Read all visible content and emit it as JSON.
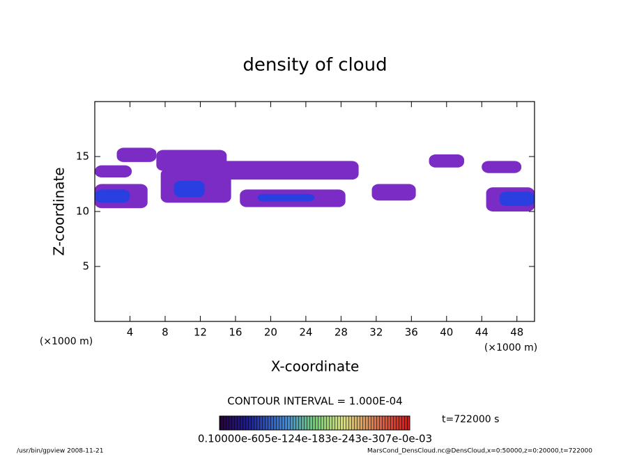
{
  "chart_data": {
    "type": "contour",
    "title": "density of cloud",
    "x_label": "X-coordinate",
    "y_label": "Z-coordinate",
    "x_unit": "(×1000 m)",
    "y_unit": "(×1000 m)",
    "xlim": [
      0,
      50
    ],
    "ylim": [
      0,
      20
    ],
    "xticks": [
      4,
      8,
      12,
      16,
      20,
      24,
      28,
      32,
      36,
      40,
      44,
      48
    ],
    "yticks": [
      5,
      10,
      15
    ],
    "contour_interval": "CONTOUR INTERVAL = 1.000E-04",
    "colorbar_labels": "0.10000e-605e-124e-183e-243e-307e-0e-03",
    "time_label": "t=722000 s",
    "footer_left": "/usr/bin/gpview   2008-11-21",
    "footer_right": "MarsCond_DensCloud.nc@DensCloud,x=0:50000,z=0:20000,t=722000",
    "patches": [
      {
        "x": [
          2.5,
          7
        ],
        "z": [
          14.5,
          15.8
        ],
        "value": 0.0001,
        "color": "#7b2cc4"
      },
      {
        "x": [
          0,
          4.2
        ],
        "z": [
          13.1,
          14.2
        ],
        "value": 0.0001,
        "color": "#7b2cc4"
      },
      {
        "x": [
          0,
          6
        ],
        "z": [
          10.3,
          12.5
        ],
        "value": 0.0001,
        "color": "#7b2cc4"
      },
      {
        "x": [
          0,
          4
        ],
        "z": [
          10.8,
          12
        ],
        "value": 0.0003,
        "color": "#2a3fe0"
      },
      {
        "x": [
          7,
          15
        ],
        "z": [
          13.7,
          15.6
        ],
        "value": 0.0001,
        "color": "#7b2cc4"
      },
      {
        "x": [
          14,
          30
        ],
        "z": [
          12.9,
          14.6
        ],
        "value": 0.0001,
        "color": "#7b2cc4"
      },
      {
        "x": [
          7.5,
          15.5
        ],
        "z": [
          10.8,
          13.9
        ],
        "value": 0.0001,
        "color": "#7b2cc4"
      },
      {
        "x": [
          9,
          12.5
        ],
        "z": [
          11.3,
          12.8
        ],
        "value": 0.0003,
        "color": "#2a3fe0"
      },
      {
        "x": [
          16.5,
          28.5
        ],
        "z": [
          10.4,
          12
        ],
        "value": 0.0001,
        "color": "#7b2cc4"
      },
      {
        "x": [
          18.5,
          25
        ],
        "z": [
          10.9,
          11.6
        ],
        "value": 0.0003,
        "color": "#2a3fe0"
      },
      {
        "x": [
          31.5,
          36.5
        ],
        "z": [
          11,
          12.5
        ],
        "value": 0.0001,
        "color": "#7b2cc4"
      },
      {
        "x": [
          38,
          42
        ],
        "z": [
          14,
          15.2
        ],
        "value": 0.0001,
        "color": "#7b2cc4"
      },
      {
        "x": [
          44,
          48.5
        ],
        "z": [
          13.5,
          14.6
        ],
        "value": 0.0001,
        "color": "#7b2cc4"
      },
      {
        "x": [
          44.5,
          50
        ],
        "z": [
          10,
          12.2
        ],
        "value": 0.0001,
        "color": "#7b2cc4"
      },
      {
        "x": [
          46,
          50
        ],
        "z": [
          10.5,
          11.8
        ],
        "value": 0.0003,
        "color": "#2a3fe0"
      }
    ]
  }
}
